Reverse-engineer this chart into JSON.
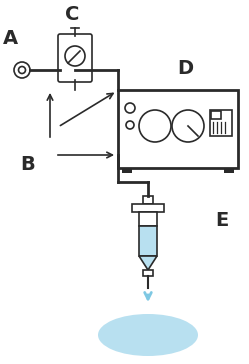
{
  "bg_color": "#ffffff",
  "line_color": "#2a2a2a",
  "light_blue": "#b8e0f0",
  "arrow_blue": "#7ec8e3",
  "label_A": "A",
  "label_B": "B",
  "label_C": "C",
  "label_D": "D",
  "label_E": "E",
  "figsize": [
    2.49,
    3.64
  ],
  "dpi": 100
}
